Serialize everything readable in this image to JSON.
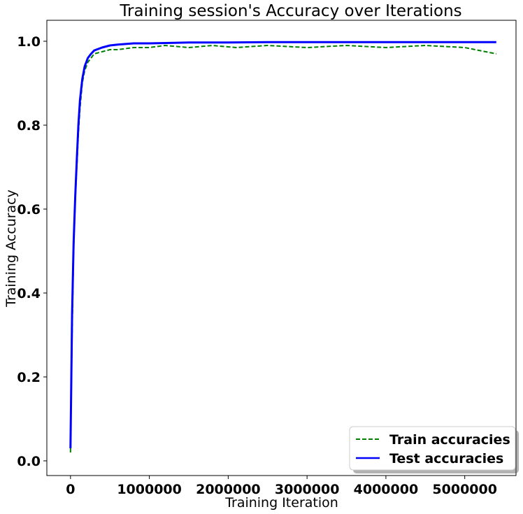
{
  "chart_data": {
    "type": "line",
    "title": "Training session's Accuracy over Iterations",
    "xlabel": "Training Iteration",
    "ylabel": "Training Accuracy",
    "xlim": [
      -300000,
      5650000
    ],
    "ylim": [
      -0.035,
      1.05
    ],
    "x_ticks": [
      0,
      1000000,
      2000000,
      3000000,
      4000000,
      5000000
    ],
    "x_tick_labels": [
      "0",
      "1000000",
      "2000000",
      "3000000",
      "4000000",
      "5000000"
    ],
    "y_ticks": [
      0.0,
      0.2,
      0.4,
      0.6,
      0.8,
      1.0
    ],
    "y_tick_labels": [
      "0.0",
      "0.2",
      "0.4",
      "0.6",
      "0.8",
      "1.0"
    ],
    "grid": false,
    "legend_position": "bottom-right",
    "series": [
      {
        "name": "Train accuracies",
        "color": "#008000",
        "style": "dashed",
        "x": [
          0,
          20000,
          40000,
          60000,
          80000,
          100000,
          120000,
          150000,
          180000,
          220000,
          260000,
          300000,
          400000,
          500000,
          600000,
          800000,
          1000000,
          1200000,
          1500000,
          1800000,
          2100000,
          2500000,
          3000000,
          3500000,
          4000000,
          4500000,
          5000000,
          5400000
        ],
        "values": [
          0.02,
          0.3,
          0.5,
          0.62,
          0.7,
          0.78,
          0.84,
          0.9,
          0.93,
          0.95,
          0.96,
          0.97,
          0.975,
          0.98,
          0.98,
          0.985,
          0.985,
          0.99,
          0.985,
          0.99,
          0.985,
          0.99,
          0.985,
          0.99,
          0.985,
          0.99,
          0.985,
          0.97
        ]
      },
      {
        "name": "Test accuracies",
        "color": "#0000ff",
        "style": "solid",
        "x": [
          0,
          20000,
          40000,
          60000,
          80000,
          100000,
          120000,
          150000,
          180000,
          220000,
          260000,
          300000,
          400000,
          500000,
          600000,
          800000,
          1000000,
          1500000,
          2000000,
          2500000,
          3000000,
          3500000,
          4000000,
          4500000,
          5000000,
          5400000
        ],
        "values": [
          0.03,
          0.35,
          0.52,
          0.63,
          0.72,
          0.8,
          0.86,
          0.91,
          0.94,
          0.96,
          0.97,
          0.978,
          0.985,
          0.99,
          0.992,
          0.995,
          0.995,
          0.997,
          0.997,
          0.998,
          0.998,
          0.998,
          0.998,
          0.998,
          0.998,
          0.998
        ]
      }
    ]
  }
}
